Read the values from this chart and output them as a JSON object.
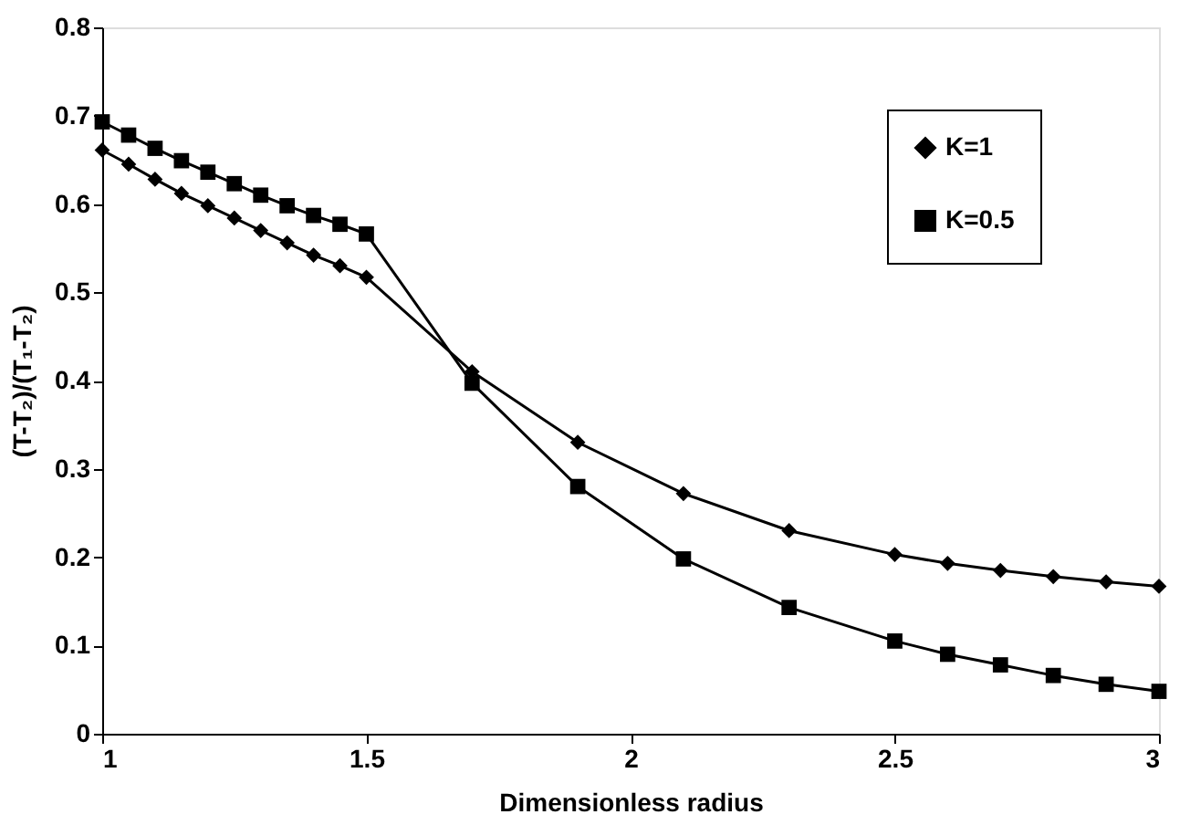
{
  "chart_data": {
    "type": "line",
    "xlabel": "Dimensionless radius",
    "ylabel": "(T-T₂)/(T₁-T₂)",
    "xlim": [
      1,
      3
    ],
    "xticks": [
      1,
      1.5,
      2,
      2.5,
      3
    ],
    "ylim": [
      0,
      0.8
    ],
    "yticks": [
      0,
      0.1,
      0.2,
      0.3,
      0.4,
      0.5,
      0.6,
      0.7,
      0.8
    ],
    "grid": false,
    "legend": "top right",
    "series": [
      {
        "name": "K=1",
        "color": "#000000",
        "marker": "diamond",
        "x": [
          1,
          1.05,
          1.1,
          1.15,
          1.2,
          1.25,
          1.3,
          1.35,
          1.4,
          1.45,
          1.5,
          1.7,
          1.9,
          2.1,
          2.3,
          2.5,
          2.6,
          2.7,
          2.8,
          2.9,
          3
        ],
        "values": [
          0.661,
          0.645,
          0.628,
          0.612,
          0.598,
          0.584,
          0.57,
          0.556,
          0.542,
          0.53,
          0.517,
          0.41,
          0.33,
          0.272,
          0.23,
          0.203,
          0.193,
          0.185,
          0.178,
          0.172,
          0.167
        ]
      },
      {
        "name": "K=0.5",
        "color": "#000000",
        "marker": "square",
        "x": [
          1,
          1.05,
          1.1,
          1.15,
          1.2,
          1.25,
          1.3,
          1.35,
          1.4,
          1.45,
          1.5,
          1.7,
          1.9,
          2.1,
          2.3,
          2.5,
          2.6,
          2.7,
          2.8,
          2.9,
          3
        ],
        "values": [
          0.693,
          0.678,
          0.663,
          0.649,
          0.636,
          0.623,
          0.61,
          0.598,
          0.587,
          0.577,
          0.566,
          0.397,
          0.28,
          0.198,
          0.143,
          0.105,
          0.09,
          0.078,
          0.066,
          0.056,
          0.048
        ]
      }
    ]
  }
}
